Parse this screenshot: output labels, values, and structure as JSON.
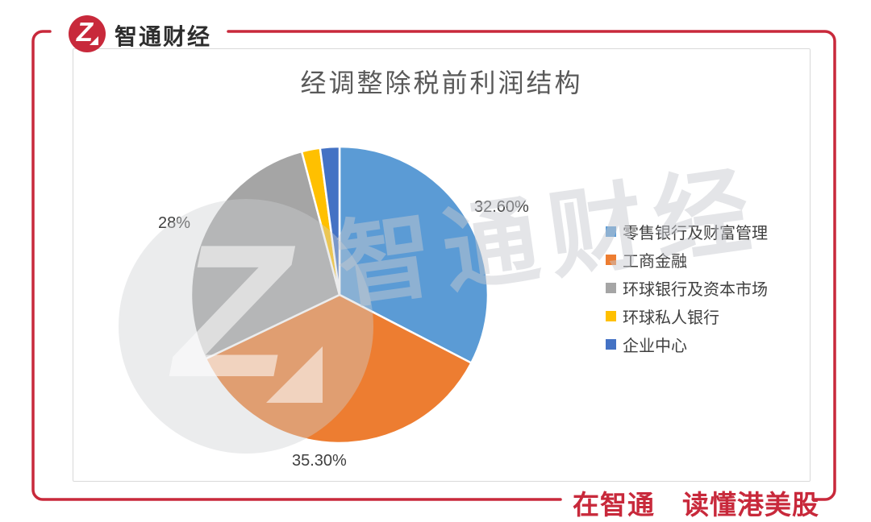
{
  "brand": {
    "name": "智通财经",
    "slogan": "在智通　读懂港美股",
    "logo_glyph": "Z",
    "red": "#C8293B"
  },
  "watermark": {
    "text": "智通财经",
    "logo_glyph": "Z"
  },
  "chart_data": {
    "type": "pie",
    "title": "经调整除税前利润结构",
    "categories": [
      "零售银行及财富管理",
      "工商金融",
      "环球银行及资本市场",
      "环球私人银行",
      "企业中心"
    ],
    "values": [
      32.6,
      35.3,
      28,
      2,
      2.1
    ],
    "colors": [
      "#5B9BD5",
      "#ED7D31",
      "#A5A5A5",
      "#FFC000",
      "#4472C4"
    ],
    "data_labels": [
      "32.60%",
      "35.30%",
      "28%",
      "",
      ""
    ],
    "legend_position": "right",
    "start_angle_deg": 0,
    "clockwise": true,
    "title_color": "#595959",
    "label_color": "#404040",
    "panel_border_color": "#D9D9D9"
  }
}
